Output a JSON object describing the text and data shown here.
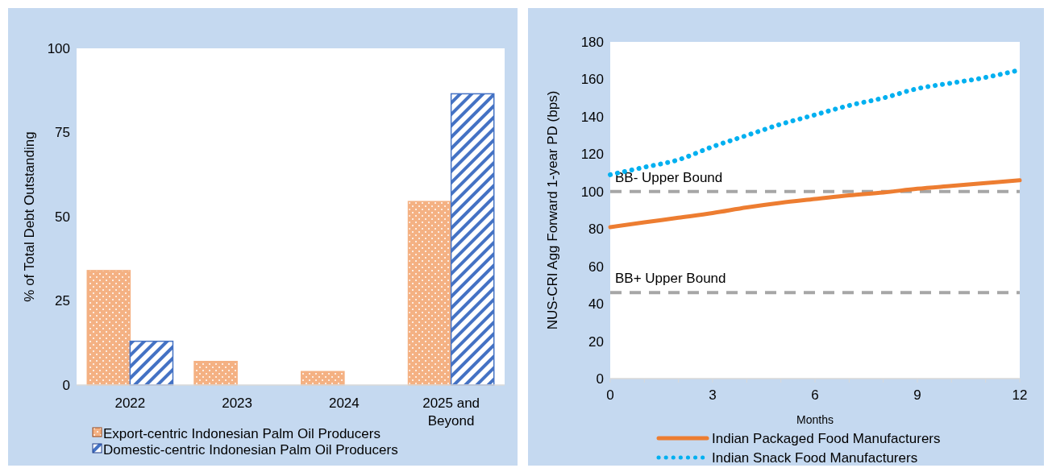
{
  "chart_data": [
    {
      "type": "bar",
      "ylabel": "% of Total Debt Outstanding",
      "categories": [
        "2022",
        "2023",
        "2024",
        "2025 and Beyond"
      ],
      "ylim": [
        0,
        100
      ],
      "yticks": [
        0,
        25,
        50,
        75,
        100
      ],
      "legend": "bottom",
      "series": [
        {
          "name": "Export-centric Indonesian Palm Oil Producers",
          "color": "#f4b183",
          "values": [
            34,
            7,
            4,
            54.5
          ]
        },
        {
          "name": "Domestic-centric Indonesian Palm Oil Producers",
          "color": "#4472c4",
          "values": [
            13,
            null,
            null,
            86.5
          ]
        }
      ]
    },
    {
      "type": "line",
      "ylabel": "NUS-CRI Agg Forward 1-year PD (bps)",
      "xlabel": "Months",
      "xlim": [
        0,
        12
      ],
      "xticks": [
        0,
        {
          "value": 1,
          "label": null
        },
        {
          "value": 2,
          "label": null
        },
        3,
        {
          "value": 4,
          "label": null
        },
        {
          "value": 5,
          "label": null
        },
        6,
        {
          "value": 7,
          "label": null
        },
        {
          "value": 8,
          "label": null
        },
        9,
        {
          "value": 10,
          "label": null
        },
        {
          "value": 11,
          "label": null
        },
        12
      ],
      "ylim": [
        0,
        180
      ],
      "yticks": [
        0,
        20,
        40,
        60,
        80,
        100,
        120,
        140,
        160,
        180
      ],
      "legend": "bottom",
      "marker": "none",
      "x": [
        0,
        1,
        2,
        3,
        4,
        5,
        6,
        7,
        8,
        9,
        10,
        11,
        12
      ],
      "series": [
        {
          "name": "Indian Packaged Food Manufacturers",
          "color": "#ed7d31",
          "line_style": "solid",
          "values": [
            81,
            83.5,
            86,
            88.5,
            91.5,
            94,
            96,
            98,
            99.5,
            101.5,
            103,
            104.5,
            106
          ]
        },
        {
          "name": "Indian Snack Food Manufacturers",
          "color": "#00b0f0",
          "line_style": "dotted",
          "values": [
            109,
            113,
            117,
            124,
            130,
            136,
            141,
            146,
            150,
            155,
            158,
            161,
            165
          ]
        }
      ],
      "ref_lines": [
        {
          "axis": "y",
          "value": 100,
          "label": "BB- Upper Bound",
          "color": "#a6a6a6",
          "line_style": "dashed"
        },
        {
          "axis": "y",
          "value": 46,
          "label": "BB+ Upper Bound",
          "color": "#a6a6a6",
          "line_style": "dashed"
        }
      ]
    }
  ]
}
